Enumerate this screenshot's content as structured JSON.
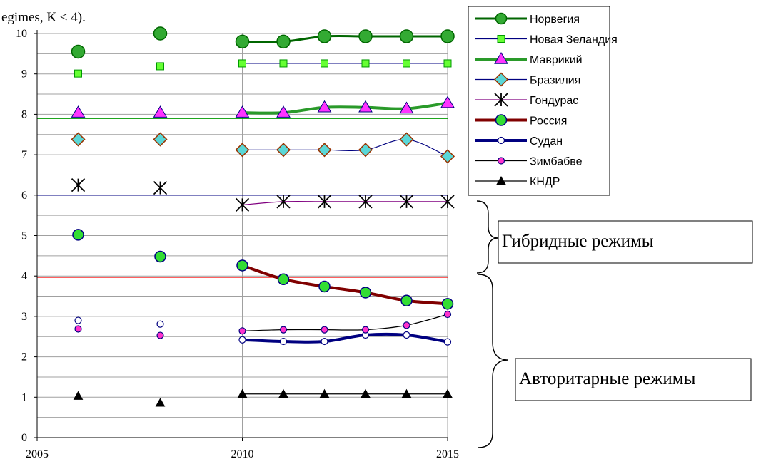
{
  "caption": "egimes, K < 4).",
  "chart_data": {
    "type": "line",
    "xlim": [
      2005,
      2015
    ],
    "ylim": [
      0,
      10
    ],
    "x_ticks": [
      "2005",
      "2010",
      "2015"
    ],
    "y_ticks": [
      "0",
      "1",
      "2",
      "3",
      "4",
      "5",
      "6",
      "7",
      "8",
      "9",
      "10"
    ],
    "grid": true,
    "legend_position": "top-right",
    "reference_lines": [
      {
        "y": 7.9,
        "color": "#009900"
      },
      {
        "y": 6.0,
        "color": "#000080"
      },
      {
        "y": 3.97,
        "color": "#ff0000"
      }
    ],
    "annotations": [
      {
        "text": "Гибридные режимы",
        "range": [
          4,
          6
        ]
      },
      {
        "text": "Авторитарные режимы",
        "range": [
          0,
          4
        ]
      }
    ],
    "series": [
      {
        "name": "Норвегия",
        "color": "#006600",
        "marker": "circle-large",
        "marker_fill": "#33aa33",
        "sparse": [
          {
            "x": 2006,
            "y": 9.55
          },
          {
            "x": 2008,
            "y": 10.0
          }
        ],
        "line": [
          {
            "x": 2010,
            "y": 9.8
          },
          {
            "x": 2011,
            "y": 9.8
          },
          {
            "x": 2012,
            "y": 9.93
          },
          {
            "x": 2013,
            "y": 9.93
          },
          {
            "x": 2014,
            "y": 9.93
          },
          {
            "x": 2015,
            "y": 9.93
          }
        ]
      },
      {
        "name": "Новая Зеландия",
        "color": "#000080",
        "marker": "square",
        "marker_fill": "#66ff33",
        "sparse": [
          {
            "x": 2006,
            "y": 9.01
          },
          {
            "x": 2008,
            "y": 9.19
          }
        ],
        "line": [
          {
            "x": 2010,
            "y": 9.26
          },
          {
            "x": 2011,
            "y": 9.26
          },
          {
            "x": 2012,
            "y": 9.26
          },
          {
            "x": 2013,
            "y": 9.26
          },
          {
            "x": 2014,
            "y": 9.26
          },
          {
            "x": 2015,
            "y": 9.26
          }
        ]
      },
      {
        "name": "Маврикий",
        "color": "#2a9a2a",
        "marker": "triangle",
        "marker_fill": "#ff33ff",
        "sparse": [
          {
            "x": 2006,
            "y": 8.04
          },
          {
            "x": 2008,
            "y": 8.04
          }
        ],
        "line": [
          {
            "x": 2010,
            "y": 8.04
          },
          {
            "x": 2011,
            "y": 8.04
          },
          {
            "x": 2012,
            "y": 8.17
          },
          {
            "x": 2013,
            "y": 8.17
          },
          {
            "x": 2014,
            "y": 8.14
          },
          {
            "x": 2015,
            "y": 8.28
          }
        ]
      },
      {
        "name": "Бразилия",
        "color": "#000080",
        "marker": "diamond",
        "marker_fill": "#5ad7d7",
        "sparse": [
          {
            "x": 2006,
            "y": 7.38
          },
          {
            "x": 2008,
            "y": 7.38
          }
        ],
        "line": [
          {
            "x": 2010,
            "y": 7.12
          },
          {
            "x": 2011,
            "y": 7.12
          },
          {
            "x": 2012,
            "y": 7.12
          },
          {
            "x": 2013,
            "y": 7.12
          },
          {
            "x": 2014,
            "y": 7.38
          },
          {
            "x": 2015,
            "y": 6.96
          }
        ]
      },
      {
        "name": "Гондурас",
        "color": "#800080",
        "marker": "asterisk",
        "marker_fill": "#000000",
        "sparse": [
          {
            "x": 2006,
            "y": 6.25
          },
          {
            "x": 2008,
            "y": 6.18
          }
        ],
        "line": [
          {
            "x": 2010,
            "y": 5.76
          },
          {
            "x": 2011,
            "y": 5.84
          },
          {
            "x": 2012,
            "y": 5.84
          },
          {
            "x": 2013,
            "y": 5.84
          },
          {
            "x": 2014,
            "y": 5.84
          },
          {
            "x": 2015,
            "y": 5.84
          }
        ]
      },
      {
        "name": "Россия",
        "color": "#800000",
        "marker": "circle",
        "marker_fill": "#33dd33",
        "sparse": [
          {
            "x": 2006,
            "y": 5.02
          },
          {
            "x": 2008,
            "y": 4.48
          }
        ],
        "line": [
          {
            "x": 2010,
            "y": 4.26
          },
          {
            "x": 2011,
            "y": 3.92
          },
          {
            "x": 2012,
            "y": 3.74
          },
          {
            "x": 2013,
            "y": 3.59
          },
          {
            "x": 2014,
            "y": 3.39
          },
          {
            "x": 2015,
            "y": 3.31
          }
        ]
      },
      {
        "name": "Судан",
        "color": "#000080",
        "marker": "circle-small",
        "marker_fill": "#ffffff",
        "sparse": [
          {
            "x": 2006,
            "y": 2.9
          },
          {
            "x": 2008,
            "y": 2.81
          }
        ],
        "line": [
          {
            "x": 2010,
            "y": 2.42
          },
          {
            "x": 2011,
            "y": 2.38
          },
          {
            "x": 2012,
            "y": 2.38
          },
          {
            "x": 2013,
            "y": 2.54
          },
          {
            "x": 2014,
            "y": 2.54
          },
          {
            "x": 2015,
            "y": 2.37
          }
        ]
      },
      {
        "name": "Зимбабве",
        "color": "#000000",
        "marker": "circle-small",
        "marker_fill": "#ff33cc",
        "sparse": [
          {
            "x": 2006,
            "y": 2.69
          },
          {
            "x": 2008,
            "y": 2.53
          }
        ],
        "line": [
          {
            "x": 2010,
            "y": 2.64
          },
          {
            "x": 2011,
            "y": 2.67
          },
          {
            "x": 2012,
            "y": 2.67
          },
          {
            "x": 2013,
            "y": 2.67
          },
          {
            "x": 2014,
            "y": 2.78
          },
          {
            "x": 2015,
            "y": 3.05
          }
        ]
      },
      {
        "name": "КНДР",
        "color": "#000000",
        "marker": "triangle-small",
        "marker_fill": "#000000",
        "sparse": [
          {
            "x": 2006,
            "y": 1.03
          },
          {
            "x": 2008,
            "y": 0.86
          }
        ],
        "line": [
          {
            "x": 2010,
            "y": 1.08
          },
          {
            "x": 2011,
            "y": 1.08
          },
          {
            "x": 2012,
            "y": 1.08
          },
          {
            "x": 2013,
            "y": 1.08
          },
          {
            "x": 2014,
            "y": 1.08
          },
          {
            "x": 2015,
            "y": 1.08
          }
        ]
      }
    ]
  }
}
